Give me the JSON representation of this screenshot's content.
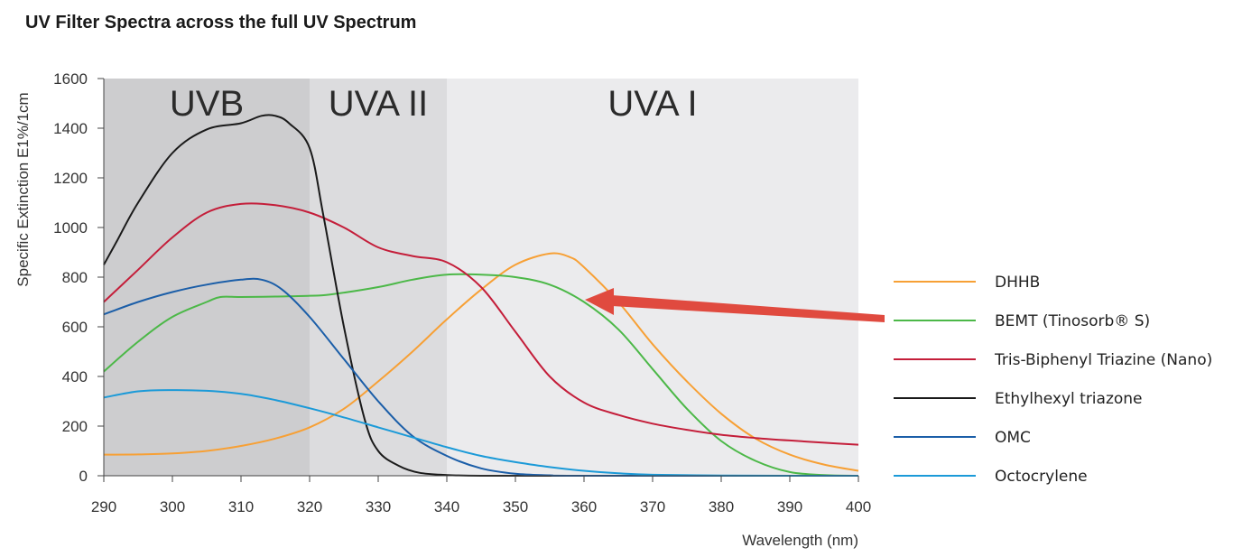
{
  "title": "UV Filter Spectra across the full UV Spectrum",
  "chart_data": {
    "type": "line",
    "xlabel": "Wavelength (nm)",
    "ylabel": "Specific Extinction E1%/1cm",
    "xlim": [
      290,
      400
    ],
    "ylim": [
      0,
      1600
    ],
    "x_ticks": [
      290,
      300,
      310,
      320,
      330,
      340,
      350,
      360,
      370,
      380,
      390,
      400
    ],
    "y_ticks": [
      0,
      200,
      400,
      600,
      800,
      1000,
      1200,
      1400,
      1600
    ],
    "grid": false,
    "legend_position": "right",
    "regions": [
      {
        "label": "UVB",
        "x_start": 290,
        "x_end": 320,
        "color": "#cdcdcf"
      },
      {
        "label": "UVA II",
        "x_start": 320,
        "x_end": 340,
        "color": "#dcdcde"
      },
      {
        "label": "UVA I",
        "x_start": 340,
        "x_end": 400,
        "color": "#ebebed"
      }
    ],
    "annotations": [
      {
        "type": "arrow",
        "color": "#e04a3f",
        "points_to_series": "BEMT (Tinosorb® S)",
        "target": [
          360,
          700
        ],
        "tail": [
          400,
          640
        ]
      }
    ],
    "series": [
      {
        "name": "DHHB",
        "color": "#f7a035",
        "x": [
          290,
          295,
          300,
          305,
          310,
          315,
          320,
          325,
          330,
          335,
          340,
          345,
          350,
          355,
          358,
          360,
          365,
          370,
          375,
          380,
          385,
          390,
          395,
          400
        ],
        "y": [
          85,
          86,
          90,
          100,
          120,
          150,
          195,
          270,
          380,
          500,
          630,
          750,
          850,
          895,
          880,
          840,
          700,
          530,
          380,
          250,
          150,
          85,
          45,
          20
        ]
      },
      {
        "name": "BEMT (Tinosorb® S)",
        "color": "#4cb848",
        "x": [
          290,
          295,
          300,
          305,
          307,
          310,
          315,
          320,
          323,
          330,
          335,
          340,
          345,
          350,
          355,
          360,
          365,
          370,
          375,
          380,
          385,
          390,
          395,
          400
        ],
        "y": [
          420,
          540,
          640,
          700,
          720,
          720,
          722,
          725,
          730,
          760,
          790,
          810,
          810,
          800,
          770,
          700,
          590,
          430,
          270,
          140,
          60,
          15,
          3,
          0
        ]
      },
      {
        "name": "Tris-Biphenyl Triazine (Nano)",
        "color": "#c41e3a",
        "x": [
          290,
          295,
          300,
          305,
          310,
          315,
          320,
          325,
          330,
          335,
          340,
          345,
          350,
          355,
          360,
          365,
          370,
          375,
          380,
          385,
          390,
          395,
          400
        ],
        "y": [
          700,
          830,
          960,
          1060,
          1095,
          1090,
          1060,
          1000,
          920,
          885,
          860,
          760,
          580,
          400,
          295,
          245,
          210,
          185,
          165,
          152,
          142,
          133,
          125
        ]
      },
      {
        "name": "Ethylhexyl triazone",
        "color": "#1a1a1a",
        "x": [
          290,
          292,
          295,
          300,
          305,
          310,
          313,
          315,
          317,
          320,
          322,
          325,
          328,
          330,
          333,
          336,
          340,
          345,
          350,
          400
        ],
        "y": [
          850,
          950,
          1100,
          1300,
          1395,
          1420,
          1450,
          1450,
          1420,
          1320,
          1050,
          600,
          230,
          100,
          40,
          12,
          3,
          0,
          0,
          0
        ]
      },
      {
        "name": "OMC",
        "color": "#1b5ea8",
        "x": [
          290,
          295,
          300,
          305,
          310,
          313,
          316,
          320,
          325,
          330,
          335,
          340,
          345,
          350,
          355,
          360,
          400
        ],
        "y": [
          650,
          700,
          740,
          770,
          790,
          790,
          750,
          640,
          470,
          300,
          160,
          80,
          30,
          8,
          2,
          0,
          0
        ]
      },
      {
        "name": "Octocrylene",
        "color": "#1b9ad8",
        "x": [
          290,
          295,
          300,
          305,
          310,
          315,
          320,
          325,
          330,
          335,
          340,
          345,
          350,
          355,
          360,
          365,
          370,
          380,
          390,
          400
        ],
        "y": [
          315,
          340,
          345,
          342,
          330,
          305,
          272,
          235,
          195,
          155,
          115,
          80,
          55,
          35,
          20,
          10,
          4,
          1,
          0,
          0
        ]
      }
    ]
  }
}
